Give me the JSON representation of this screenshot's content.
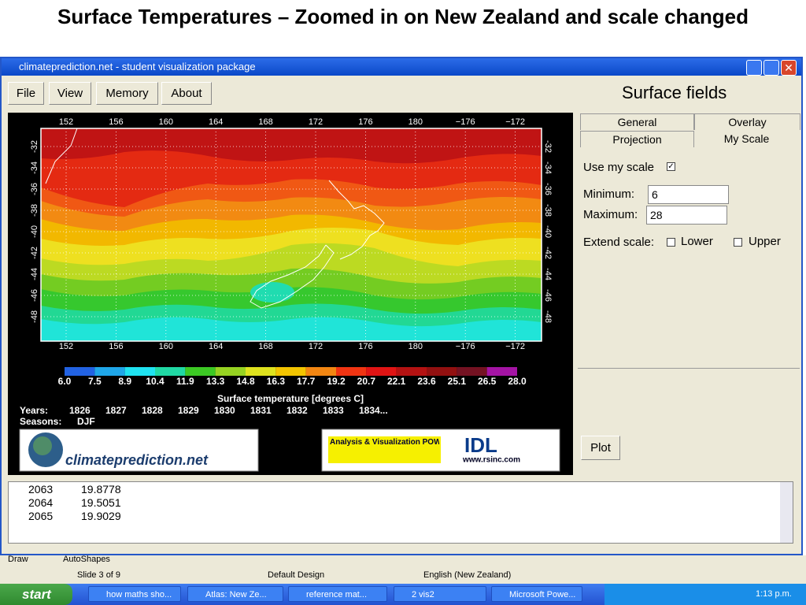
{
  "slide": {
    "title": "Surface Temperatures – Zoomed in on New Zealand and scale changed"
  },
  "window": {
    "title": "climateprediction.net - student visualization package",
    "menu": [
      "File",
      "View",
      "Memory",
      "About"
    ],
    "panel": {
      "title": "Surface fields",
      "tabs": [
        "General",
        "Overlay",
        "Projection",
        "My Scale"
      ],
      "use_scale": "Use my scale",
      "minimum_label": "Minimum:",
      "minimum": "6",
      "maximum_label": "Maximum:",
      "maximum": "28",
      "extend_label": "Extend scale:",
      "lower": "Lower",
      "upper": "Upper",
      "plot": "Plot"
    },
    "map": {
      "lon_labels": [
        "152",
        "156",
        "160",
        "164",
        "168",
        "172",
        "176",
        "180",
        "−176",
        "−172"
      ],
      "lat_labels": [
        "-32",
        "-34",
        "-36",
        "-38",
        "-40",
        "-42",
        "-44",
        "-46",
        "-48"
      ],
      "colorbar_colors": [
        "#2262e2",
        "#1fa6e8",
        "#1fe2f0",
        "#20d8a4",
        "#3cc824",
        "#96d222",
        "#dee21e",
        "#f2c400",
        "#f28612",
        "#f03412",
        "#e01414",
        "#b41212",
        "#921010",
        "#741222",
        "#a414a4"
      ],
      "colorbar_labels": [
        "6.0",
        "7.5",
        "8.9",
        "10.4",
        "11.9",
        "13.3",
        "14.8",
        "16.3",
        "17.7",
        "19.2",
        "20.7",
        "22.1",
        "23.6",
        "25.1",
        "26.5",
        "28.0"
      ],
      "caption": "Surface temperature [degrees C]",
      "years_label": "Years:",
      "years": [
        "1826",
        "1827",
        "1828",
        "1829",
        "1830",
        "1831",
        "1832",
        "1833",
        "1834..."
      ],
      "seasons_label": "Seasons:",
      "season": "DJF",
      "logo": "climateprediction.net",
      "powered": "Analysis & Visualization POWERED by",
      "idl": "IDL",
      "idl_url": "www.rsinc.com"
    },
    "output": [
      [
        "2063",
        "19.8778"
      ],
      [
        "2064",
        "19.5051"
      ],
      [
        "2065",
        "19.9029"
      ]
    ]
  },
  "toolbar": {
    "draw": "Draw",
    "autoshapes": "AutoShapes"
  },
  "status": [
    "Slide 3 of 9",
    "Default Design",
    "English (New Zealand)"
  ],
  "taskbar": {
    "start": "start",
    "items": [
      "how maths sho...",
      "Atlas: New Ze...",
      "reference mat...",
      "2 vis2",
      "Microsoft Powe..."
    ],
    "clock": "1:13 p.m."
  }
}
